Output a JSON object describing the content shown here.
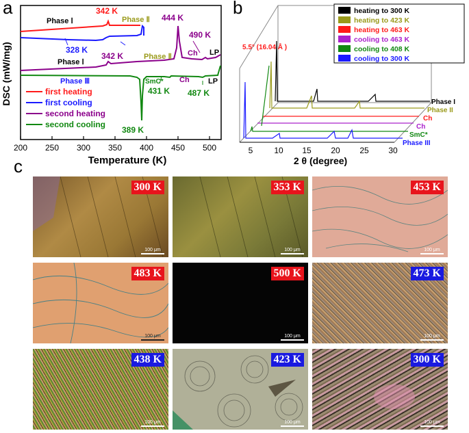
{
  "panel_a": {
    "letter": "a",
    "ylabel": "DSC (mW/mg)",
    "xlabel": "Temperature (K)",
    "ticks": [
      "200",
      "250",
      "300",
      "350",
      "400",
      "450",
      "500"
    ],
    "annotations": {
      "phase_i_top": "Phase Ⅰ",
      "t342_top": "342 K",
      "phase_ii_top": "Phase Ⅱ",
      "t328": "328 K",
      "t444": "444 K",
      "t490": "490 K",
      "ch_top": "Ch",
      "lp_top": "LP",
      "phase_i_mid": "Phase Ⅰ",
      "t342_mid": "342 K",
      "phase_ii_mid": "Phase Ⅱ",
      "phase_iii": "Phase Ⅲ",
      "smc": "SmC*",
      "ch_mid": "Ch",
      "lp_mid": "LP",
      "t431": "431 K",
      "t487": "487 K",
      "t389": "389 K"
    },
    "legend": [
      {
        "label": "first heating",
        "color": "#ff1a1a"
      },
      {
        "label": "first cooling",
        "color": "#1a1aff"
      },
      {
        "label": "second heating",
        "color": "#8b008b"
      },
      {
        "label": "second cooling",
        "color": "#118811"
      }
    ]
  },
  "panel_b": {
    "letter": "b",
    "xlabel": "2 θ (degree)",
    "ticks": [
      "5",
      "10",
      "15",
      "20",
      "25",
      "30"
    ],
    "peak_note": "5.5° (16.04 Å )",
    "legend": [
      {
        "label": "heating to 300 K",
        "color": "#000000"
      },
      {
        "label": "heating to 423 K",
        "color": "#9a9a1a"
      },
      {
        "label": "heating to 463 K",
        "color": "#ff1a1a"
      },
      {
        "label": "cooling to 463 K",
        "color": "#aa22cc"
      },
      {
        "label": "cooling to 408 K",
        "color": "#118811"
      },
      {
        "label": "cooling to 300 K",
        "color": "#1a1aff"
      }
    ],
    "phase_labels": [
      {
        "label": "Phase I",
        "color": "#000000"
      },
      {
        "label": "Phase II",
        "color": "#9a9a1a"
      },
      {
        "label": "Ch",
        "color": "#ff1a1a"
      },
      {
        "label": "Ch",
        "color": "#aa22cc"
      },
      {
        "label": "SmC*",
        "color": "#118811"
      },
      {
        "label": "Phase III",
        "color": "#1a1aff"
      }
    ]
  },
  "panel_c": {
    "letter": "c",
    "scale_label": "100 μm",
    "tiles": [
      {
        "temp": "300 K",
        "badge_color": "#e8141c",
        "texture": "brown-domain"
      },
      {
        "temp": "353 K",
        "badge_color": "#e8141c",
        "texture": "olive-domain"
      },
      {
        "temp": "453 K",
        "badge_color": "#e8141c",
        "texture": "pink-lines"
      },
      {
        "temp": "483 K",
        "badge_color": "#e8141c",
        "texture": "peach-lines"
      },
      {
        "temp": "500 K",
        "badge_color": "#e8141c",
        "texture": "dark"
      },
      {
        "temp": "473 K",
        "badge_color": "#1a1ae0",
        "texture": "speckle"
      },
      {
        "temp": "438 K",
        "badge_color": "#1a1ae0",
        "texture": "hatch"
      },
      {
        "temp": "423 K",
        "badge_color": "#1a1ae0",
        "texture": "swirl"
      },
      {
        "temp": "300 K",
        "badge_color": "#1a1ae0",
        "texture": "brush"
      }
    ]
  }
}
